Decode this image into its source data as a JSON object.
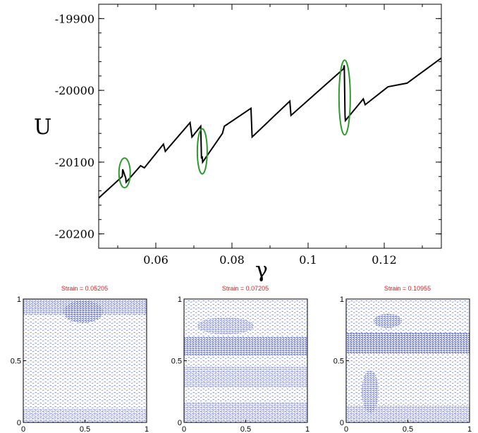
{
  "main_plot": {
    "ylabel": "U",
    "xlabel": "γ",
    "x_ticks": [
      "0.06",
      "0.08",
      "0.1",
      "0.12"
    ],
    "y_ticks": [
      "-19900",
      "-20000",
      "-20100",
      "-20200"
    ]
  },
  "snapshots": [
    {
      "title": "Strain = 0.05205"
    },
    {
      "title": "Strain = 0.07205"
    },
    {
      "title": "Strain = 0.10955"
    }
  ],
  "snapshot_ticks": {
    "x": [
      "0",
      "0.5",
      "1"
    ],
    "y": [
      "0",
      "0.5",
      "1"
    ]
  },
  "colors": {
    "curve": "#000000",
    "ellipse": "#2e9a2e",
    "field": "#1c2fd0",
    "title_red": "#e02020"
  },
  "chart_data": [
    {
      "type": "line",
      "title": "",
      "xlabel": "γ",
      "ylabel": "U",
      "xlim": [
        0.045,
        0.135
      ],
      "ylim": [
        -20220,
        -19880
      ],
      "x_ticks": [
        0.06,
        0.08,
        0.1,
        0.12
      ],
      "y_ticks": [
        -19900,
        -20000,
        -20100,
        -20200
      ],
      "grid": false,
      "series": [
        {
          "name": "",
          "x": [
            0.045,
            0.0512,
            0.0513,
            0.0521,
            0.0522,
            0.056,
            0.057,
            0.062,
            0.0625,
            0.069,
            0.0695,
            0.0718,
            0.072,
            0.0722,
            0.0723,
            0.0775,
            0.078,
            0.085,
            0.0853,
            0.0952,
            0.0955,
            0.1093,
            0.1095,
            0.1097,
            0.1098,
            0.1145,
            0.115,
            0.121,
            0.126,
            0.135
          ],
          "y": [
            -20150,
            -20120,
            -20110,
            -20122,
            -20128,
            -20105,
            -20108,
            -20075,
            -20085,
            -20045,
            -20065,
            -20050,
            -20095,
            -20092,
            -20100,
            -20060,
            -20050,
            -20025,
            -20065,
            -20015,
            -20035,
            -19970,
            -19965,
            -20035,
            -20042,
            -20012,
            -20020,
            -19995,
            -19990,
            -19955
          ]
        }
      ],
      "annotations": [
        {
          "type": "ellipse",
          "x": 0.0518,
          "y": -20115,
          "color": "green"
        },
        {
          "type": "ellipse",
          "x": 0.0722,
          "y": -20085,
          "color": "green"
        },
        {
          "type": "ellipse",
          "x": 0.1096,
          "y": -20010,
          "color": "green"
        }
      ]
    },
    {
      "type": "heatmap",
      "title": "Strain = 0.05205",
      "xlim": [
        0,
        1
      ],
      "ylim": [
        0,
        1
      ],
      "x_ticks": [
        0,
        0.5,
        1
      ],
      "y_ticks": [
        0,
        0.5,
        1
      ]
    },
    {
      "type": "heatmap",
      "title": "Strain = 0.07205",
      "xlim": [
        0,
        1
      ],
      "ylim": [
        0,
        1
      ],
      "x_ticks": [
        0,
        0.5,
        1
      ],
      "y_ticks": [
        0,
        0.5,
        1
      ]
    },
    {
      "type": "heatmap",
      "title": "Strain = 0.10955",
      "xlim": [
        0,
        1
      ],
      "ylim": [
        0,
        1
      ],
      "x_ticks": [
        0,
        0.5,
        1
      ],
      "y_ticks": [
        0,
        0.5,
        1
      ]
    }
  ]
}
